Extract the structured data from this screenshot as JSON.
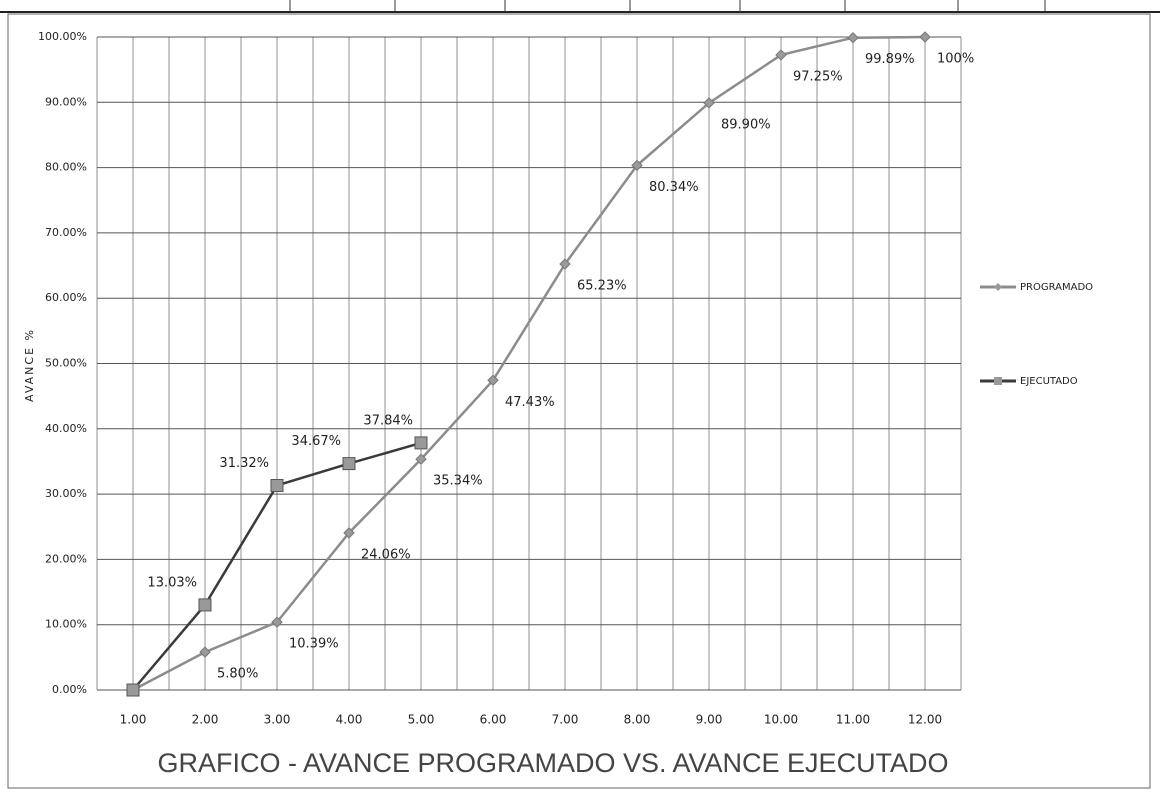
{
  "chart_data": {
    "type": "line",
    "title": "GRAFICO - AVANCE PROGRAMADO VS. AVANCE EJECUTADO",
    "y_label": "AVANCE %",
    "categories": [
      "1.00",
      "2.00",
      "3.00",
      "4.00",
      "5.00",
      "6.00",
      "7.00",
      "8.00",
      "9.00",
      "10.00",
      "11.00",
      "12.00"
    ],
    "series": [
      {
        "name": "PROGRAMADO",
        "color": "#8c8c8c",
        "marker": "diamond",
        "values": [
          0,
          5.8,
          10.39,
          24.06,
          35.34,
          47.43,
          65.23,
          80.34,
          89.9,
          97.25,
          99.89,
          100
        ],
        "value_labels": [
          null,
          "5.80%",
          "10.39%",
          "24.06%",
          "35.34%",
          "47.43%",
          "65.23%",
          "80.34%",
          "89.90%",
          "97.25%",
          "99.89%",
          "100%"
        ]
      },
      {
        "name": "EJECUTADO",
        "color": "#3a3a3a",
        "marker": "square",
        "values": [
          0,
          13.03,
          31.32,
          34.67,
          37.84,
          null,
          null,
          null,
          null,
          null,
          null,
          null
        ],
        "value_labels": [
          null,
          "13.03%",
          "31.32%",
          "34.67%",
          "37.84%",
          null,
          null,
          null,
          null,
          null,
          null,
          null
        ]
      }
    ],
    "ylim": [
      0,
      100
    ],
    "yticks": [
      {
        "value": 0,
        "label": "0.00%"
      },
      {
        "value": 10,
        "label": "10.00%"
      },
      {
        "value": 20,
        "label": "20.00%"
      },
      {
        "value": 30,
        "label": "30.00%"
      },
      {
        "value": 40,
        "label": "40.00%"
      },
      {
        "value": 50,
        "label": "50.00%"
      },
      {
        "value": 60,
        "label": "60.00%"
      },
      {
        "value": 70,
        "label": "70.00%"
      },
      {
        "value": 80,
        "label": "80.00%"
      },
      {
        "value": 90,
        "label": "90.00%"
      },
      {
        "value": 100,
        "label": "100.00%"
      }
    ],
    "grid": true,
    "legend": "right"
  }
}
